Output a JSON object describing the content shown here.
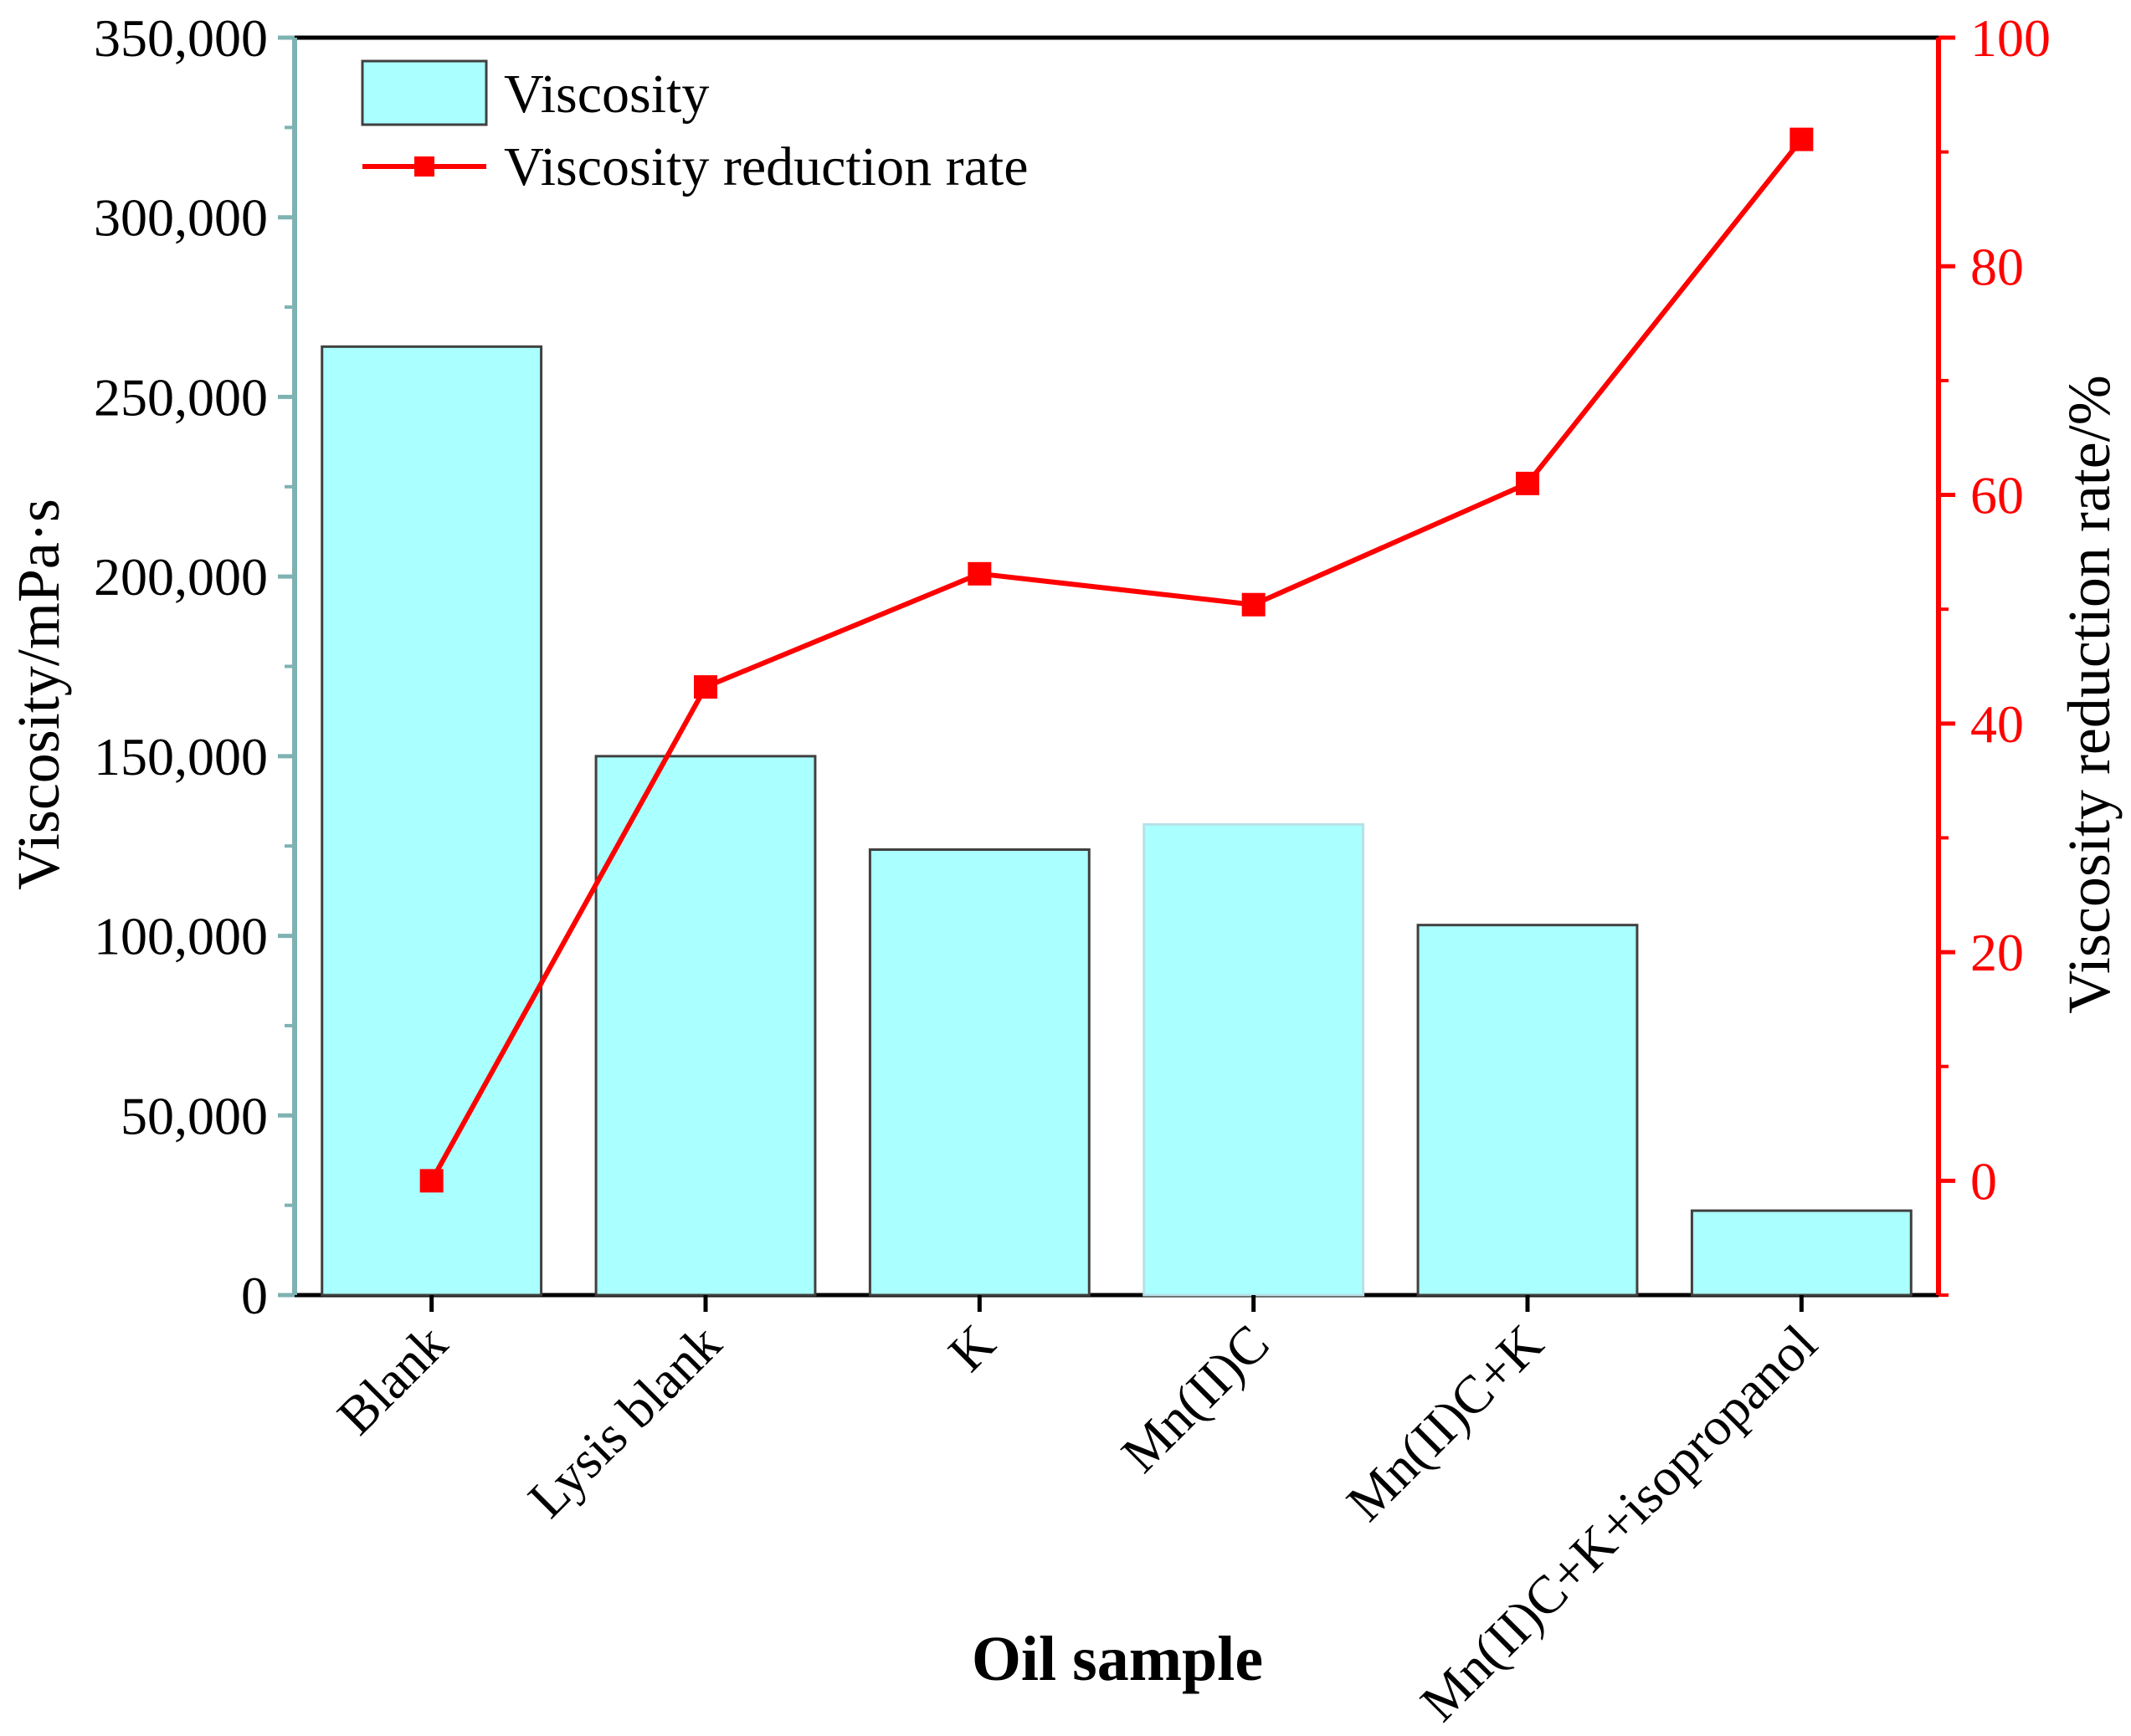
{
  "chart_data": {
    "type": "bar+line",
    "xlabel": "Oil sample",
    "categories": [
      "Blank",
      "Lysis blank",
      "K",
      "Mn(II)C",
      "Mn(II)C+K",
      "Mn(II)C+K+isopropanol"
    ],
    "series": [
      {
        "name": "Viscosity",
        "type": "bar",
        "axis": "left",
        "values": [
          264000,
          150000,
          124000,
          131000,
          103000,
          23500
        ]
      },
      {
        "name": "Viscosity reduction rate",
        "type": "line",
        "axis": "right",
        "values": [
          0,
          43.2,
          53.1,
          50.4,
          61.0,
          91.1
        ]
      }
    ],
    "y_left": {
      "label": "Viscosity/mPa·s",
      "ylim": [
        0,
        350000
      ],
      "ticks": [
        0,
        50000,
        100000,
        150000,
        200000,
        250000,
        300000,
        350000
      ],
      "tick_labels": [
        "0",
        "50,000",
        "100,000",
        "150,000",
        "200,000",
        "250,000",
        "300,000",
        "350,000"
      ]
    },
    "y_right": {
      "label": "Viscosity reduction rate/%",
      "ylim": [
        -10,
        100
      ],
      "ticks": [
        0,
        20,
        40,
        60,
        80,
        100
      ],
      "tick_labels": [
        "0",
        "20",
        "40",
        "60",
        "80",
        "100"
      ]
    },
    "legend": {
      "position": "top-left",
      "items": [
        "Viscosity",
        "Viscosity reduction rate"
      ]
    },
    "colors": {
      "bar_fill": "#AAFFFF",
      "bar_stroke": "#404040",
      "line": "#FF0000",
      "left_axis": "#7FB2B2",
      "right_axis": "#FF0000",
      "frame": "#000000"
    },
    "grid": false
  }
}
